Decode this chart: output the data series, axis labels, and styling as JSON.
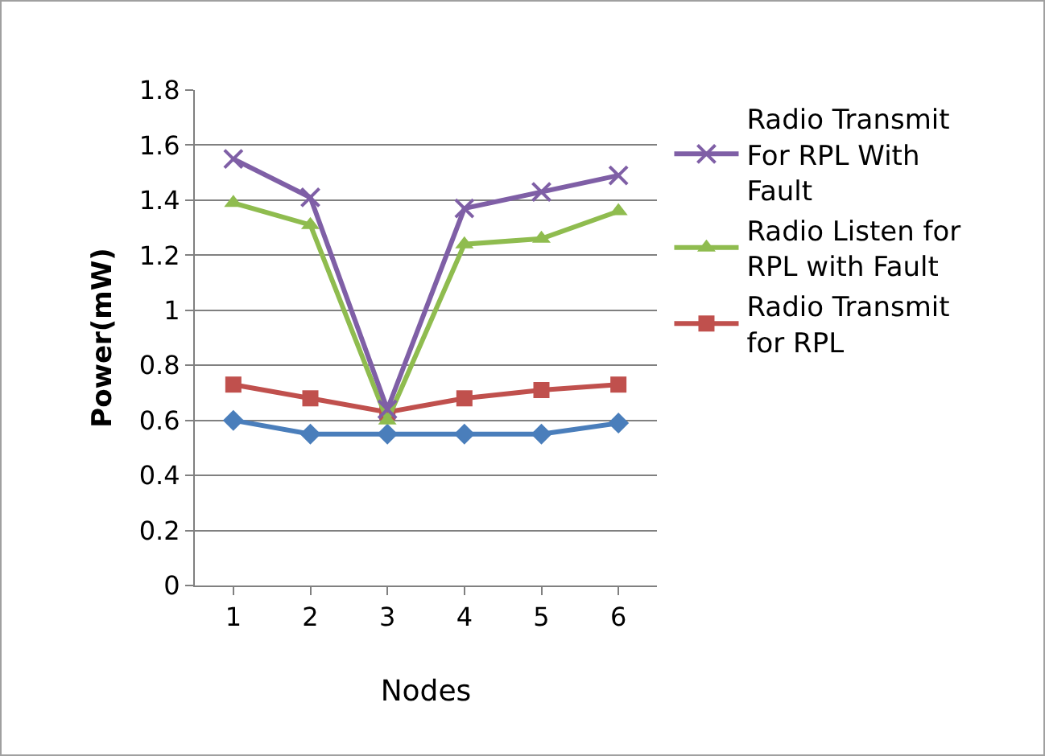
{
  "chart_data": {
    "type": "line",
    "xlabel": "Nodes",
    "ylabel": "Power(mW)",
    "categories": [
      "1",
      "2",
      "3",
      "4",
      "5",
      "6"
    ],
    "series": [
      {
        "name": "Radio Transmit For RPL With Fault",
        "color": "#7f5fa6",
        "marker": "cross",
        "values": [
          1.55,
          1.41,
          0.64,
          1.37,
          1.43,
          1.49
        ]
      },
      {
        "name": "Radio Listen for RPL with Fault",
        "color": "#8fbc4f",
        "marker": "triangle",
        "values": [
          1.39,
          1.31,
          0.6,
          1.24,
          1.26,
          1.36
        ]
      },
      {
        "name": "Radio Transmit for RPL",
        "color": "#c0504d",
        "marker": "square",
        "values": [
          0.73,
          0.68,
          0.63,
          0.68,
          0.71,
          0.73
        ]
      },
      {
        "color": "#4a7ebb",
        "marker": "diamond",
        "values": [
          0.6,
          0.55,
          0.55,
          0.55,
          0.55,
          0.59
        ]
      }
    ],
    "ylim": [
      0,
      1.8
    ],
    "yticks": [
      0,
      0.2,
      0.4,
      0.6,
      0.8,
      1,
      1.2,
      1.4,
      1.6,
      1.8
    ],
    "grid": "y",
    "legend": "right",
    "line_style": "solid"
  }
}
